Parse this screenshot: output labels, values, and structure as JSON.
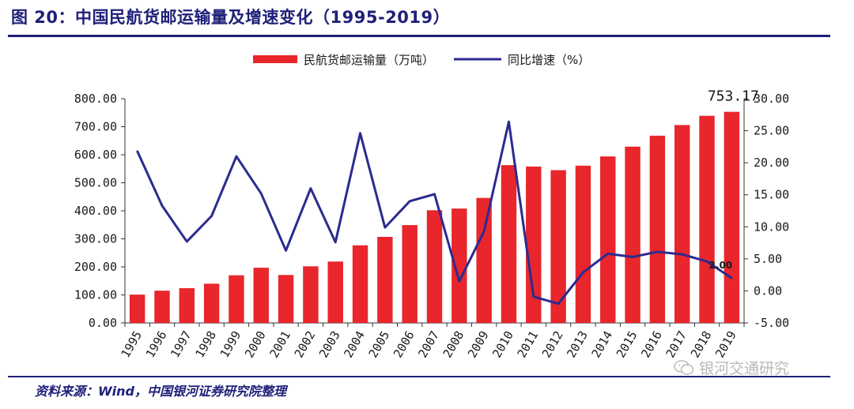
{
  "figure": {
    "title": "图 20：中国民航货邮运输量及增速变化（1995-2019）",
    "source": "资料来源：Wind，中国银河证券研究院整理",
    "watermark": "银河交通研究"
  },
  "colors": {
    "bars": "#e8262b",
    "line": "#2b2b8f",
    "accent": "#1f1f7a"
  },
  "chart_data": {
    "type": "bar",
    "categories": [
      "1995",
      "1996",
      "1997",
      "1998",
      "1999",
      "2000",
      "2001",
      "2002",
      "2003",
      "2004",
      "2005",
      "2006",
      "2007",
      "2008",
      "2009",
      "2010",
      "2011",
      "2012",
      "2013",
      "2014",
      "2015",
      "2016",
      "2017",
      "2018",
      "2019"
    ],
    "series": [
      {
        "name": "民航货邮运输量（万吨）",
        "type": "bar",
        "axis": "left",
        "values": [
          101,
          115,
          124,
          140,
          170,
          197,
          171,
          202,
          219,
          277,
          307,
          349,
          402,
          408,
          446,
          563,
          558,
          545,
          561,
          594,
          629,
          668,
          706,
          739,
          753.17
        ]
      },
      {
        "name": "同比增速（%）",
        "type": "line",
        "axis": "right",
        "values": [
          21.8,
          13.3,
          7.7,
          11.7,
          21.0,
          15.2,
          6.3,
          16.0,
          7.6,
          24.6,
          9.9,
          14.0,
          15.1,
          1.5,
          9.3,
          26.4,
          -0.9,
          -2.0,
          2.9,
          5.8,
          5.3,
          6.1,
          5.7,
          4.6,
          2.0
        ]
      }
    ],
    "left_axis": {
      "ylim": [
        0,
        800
      ],
      "ticks": [
        "0.00",
        "100.00",
        "200.00",
        "300.00",
        "400.00",
        "500.00",
        "600.00",
        "700.00",
        "800.00"
      ]
    },
    "right_axis": {
      "ylim": [
        -5,
        30
      ],
      "ticks": [
        "-5.00",
        "0.00",
        "5.00",
        "10.00",
        "15.00",
        "20.00",
        "25.00",
        "30.00"
      ]
    },
    "annotations": [
      {
        "series": "民航货邮运输量（万吨）",
        "category": "2019",
        "text": "753.17"
      },
      {
        "series": "同比增速（%）",
        "category": "2019",
        "text": "2.00"
      }
    ],
    "legend": {
      "position": "top",
      "items": [
        "民航货邮运输量（万吨）",
        "同比增速（%）"
      ]
    },
    "grid": false
  }
}
